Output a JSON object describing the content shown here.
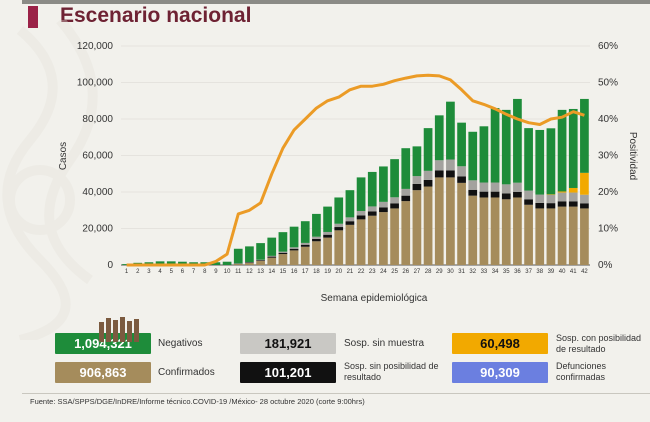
{
  "title": "Escenario nacional",
  "chart_data": {
    "type": "bar+line",
    "xlabel": "Semana epidemiológica",
    "ylabel": "Casos",
    "y2label": "Positividad",
    "ylim": [
      0,
      120000
    ],
    "y2lim": [
      0,
      60
    ],
    "yticks": [
      "0",
      "20,000",
      "40,000",
      "60,000",
      "80,000",
      "100,000",
      "120,000"
    ],
    "y2ticks": [
      "0%",
      "10%",
      "20%",
      "30%",
      "40%",
      "50%",
      "60%"
    ],
    "categories": [
      "1",
      "2",
      "3",
      "4",
      "5",
      "6",
      "7",
      "8",
      "9",
      "10",
      "11",
      "12",
      "13",
      "14",
      "15",
      "16",
      "17",
      "18",
      "19",
      "20",
      "21",
      "22",
      "23",
      "24",
      "25",
      "26",
      "27",
      "28",
      "29",
      "30",
      "31",
      "32",
      "33",
      "34",
      "35",
      "36",
      "37",
      "38",
      "39",
      "40",
      "41",
      "42"
    ],
    "series": [
      {
        "name": "Confirmados",
        "color": "#a58c5c",
        "values": [
          0,
          0,
          0,
          0,
          0,
          0,
          0,
          0,
          0,
          0,
          600,
          1100,
          2200,
          4000,
          6000,
          8000,
          10000,
          13000,
          15000,
          19000,
          22000,
          25000,
          27000,
          29000,
          31000,
          35000,
          41000,
          43000,
          48000,
          48000,
          45000,
          38000,
          37000,
          37000,
          36000,
          37000,
          33000,
          31000,
          31000,
          32000,
          32000,
          31000
        ]
      },
      {
        "name": "Sosp. sin posibilidad de resultado",
        "color": "#111111",
        "values": [
          0,
          0,
          0,
          0,
          0,
          0,
          0,
          0,
          0,
          0,
          200,
          300,
          400,
          600,
          700,
          900,
          1100,
          1300,
          1600,
          1800,
          2000,
          2200,
          2400,
          2600,
          2800,
          3000,
          3400,
          3600,
          3800,
          3800,
          3500,
          3200,
          3200,
          3200,
          3200,
          3100,
          3000,
          3000,
          2900,
          2900,
          2900,
          2800
        ]
      },
      {
        "name": "Sosp. sin muestra",
        "color": "#a3a29e",
        "values": [
          0,
          0,
          0,
          0,
          0,
          0,
          0,
          0,
          0,
          0,
          100,
          200,
          300,
          400,
          600,
          800,
          1000,
          1200,
          1500,
          1800,
          2100,
          2400,
          2700,
          3000,
          3300,
          3700,
          4300,
          5000,
          5600,
          6000,
          5600,
          5200,
          5000,
          5000,
          5000,
          5000,
          4800,
          4600,
          4600,
          4800,
          4800,
          4700
        ]
      },
      {
        "name": "Sosp. con posibilidad de resultado",
        "color": "#f2a900",
        "values": [
          0,
          0,
          0,
          0,
          0,
          0,
          0,
          0,
          0,
          0,
          0,
          0,
          0,
          0,
          0,
          0,
          0,
          0,
          0,
          0,
          0,
          0,
          0,
          0,
          0,
          0,
          0,
          0,
          0,
          0,
          0,
          0,
          0,
          0,
          0,
          0,
          0,
          0,
          200,
          600,
          2500,
          12000
        ]
      },
      {
        "name": "Negativos",
        "color": "#1e8c3a",
        "values": [
          500,
          1200,
          1500,
          2000,
          2000,
          1800,
          1500,
          1500,
          1500,
          1800,
          8000,
          8600,
          9100,
          10000,
          10700,
          11300,
          11900,
          12500,
          13900,
          14400,
          14900,
          18400,
          18900,
          19400,
          20900,
          22300,
          16300,
          23400,
          24600,
          31700,
          23900,
          26600,
          30800,
          40800,
          40800,
          45900,
          34200,
          35400,
          36200,
          44700,
          43300,
          40500
        ]
      },
      {
        "name": "Positividad",
        "color": "#eb9b26",
        "axis": "y2",
        "values": [
          0,
          0,
          0,
          0,
          0,
          0,
          0,
          0,
          1,
          3,
          14,
          15,
          17,
          25,
          32,
          37,
          40,
          43,
          45,
          46,
          48,
          49,
          49,
          49.5,
          50.5,
          51.2,
          51.8,
          52,
          51.8,
          50.7,
          48,
          45,
          44,
          42.8,
          41.3,
          40,
          39,
          38.5,
          40,
          40.5,
          42,
          41
        ]
      }
    ]
  },
  "summary": [
    {
      "value": "1,094,321",
      "label": "Negativos",
      "color": "#1e8c3a"
    },
    {
      "value": "181,921",
      "label": "Sosp. sin muestra",
      "color": "#c9c8c4"
    },
    {
      "value": "60,498",
      "label": "Sosp. con posibilidad de resultado",
      "color": "#f2a900"
    },
    {
      "value": "906,863",
      "label": "Confirmados",
      "color": "#a58c5c"
    },
    {
      "value": "101,201",
      "label": "Sosp. sin posibilidad de resultado",
      "color": "#111111"
    },
    {
      "value": "90,309",
      "label": "Defunciones confirmadas",
      "color": "#6b7fe0"
    }
  ],
  "source": "Fuente: SSA/SPPS/DGE/InDRE/Informe técnico.COVID-19 /México- 28 octubre 2020 (corte 9:00hrs)"
}
